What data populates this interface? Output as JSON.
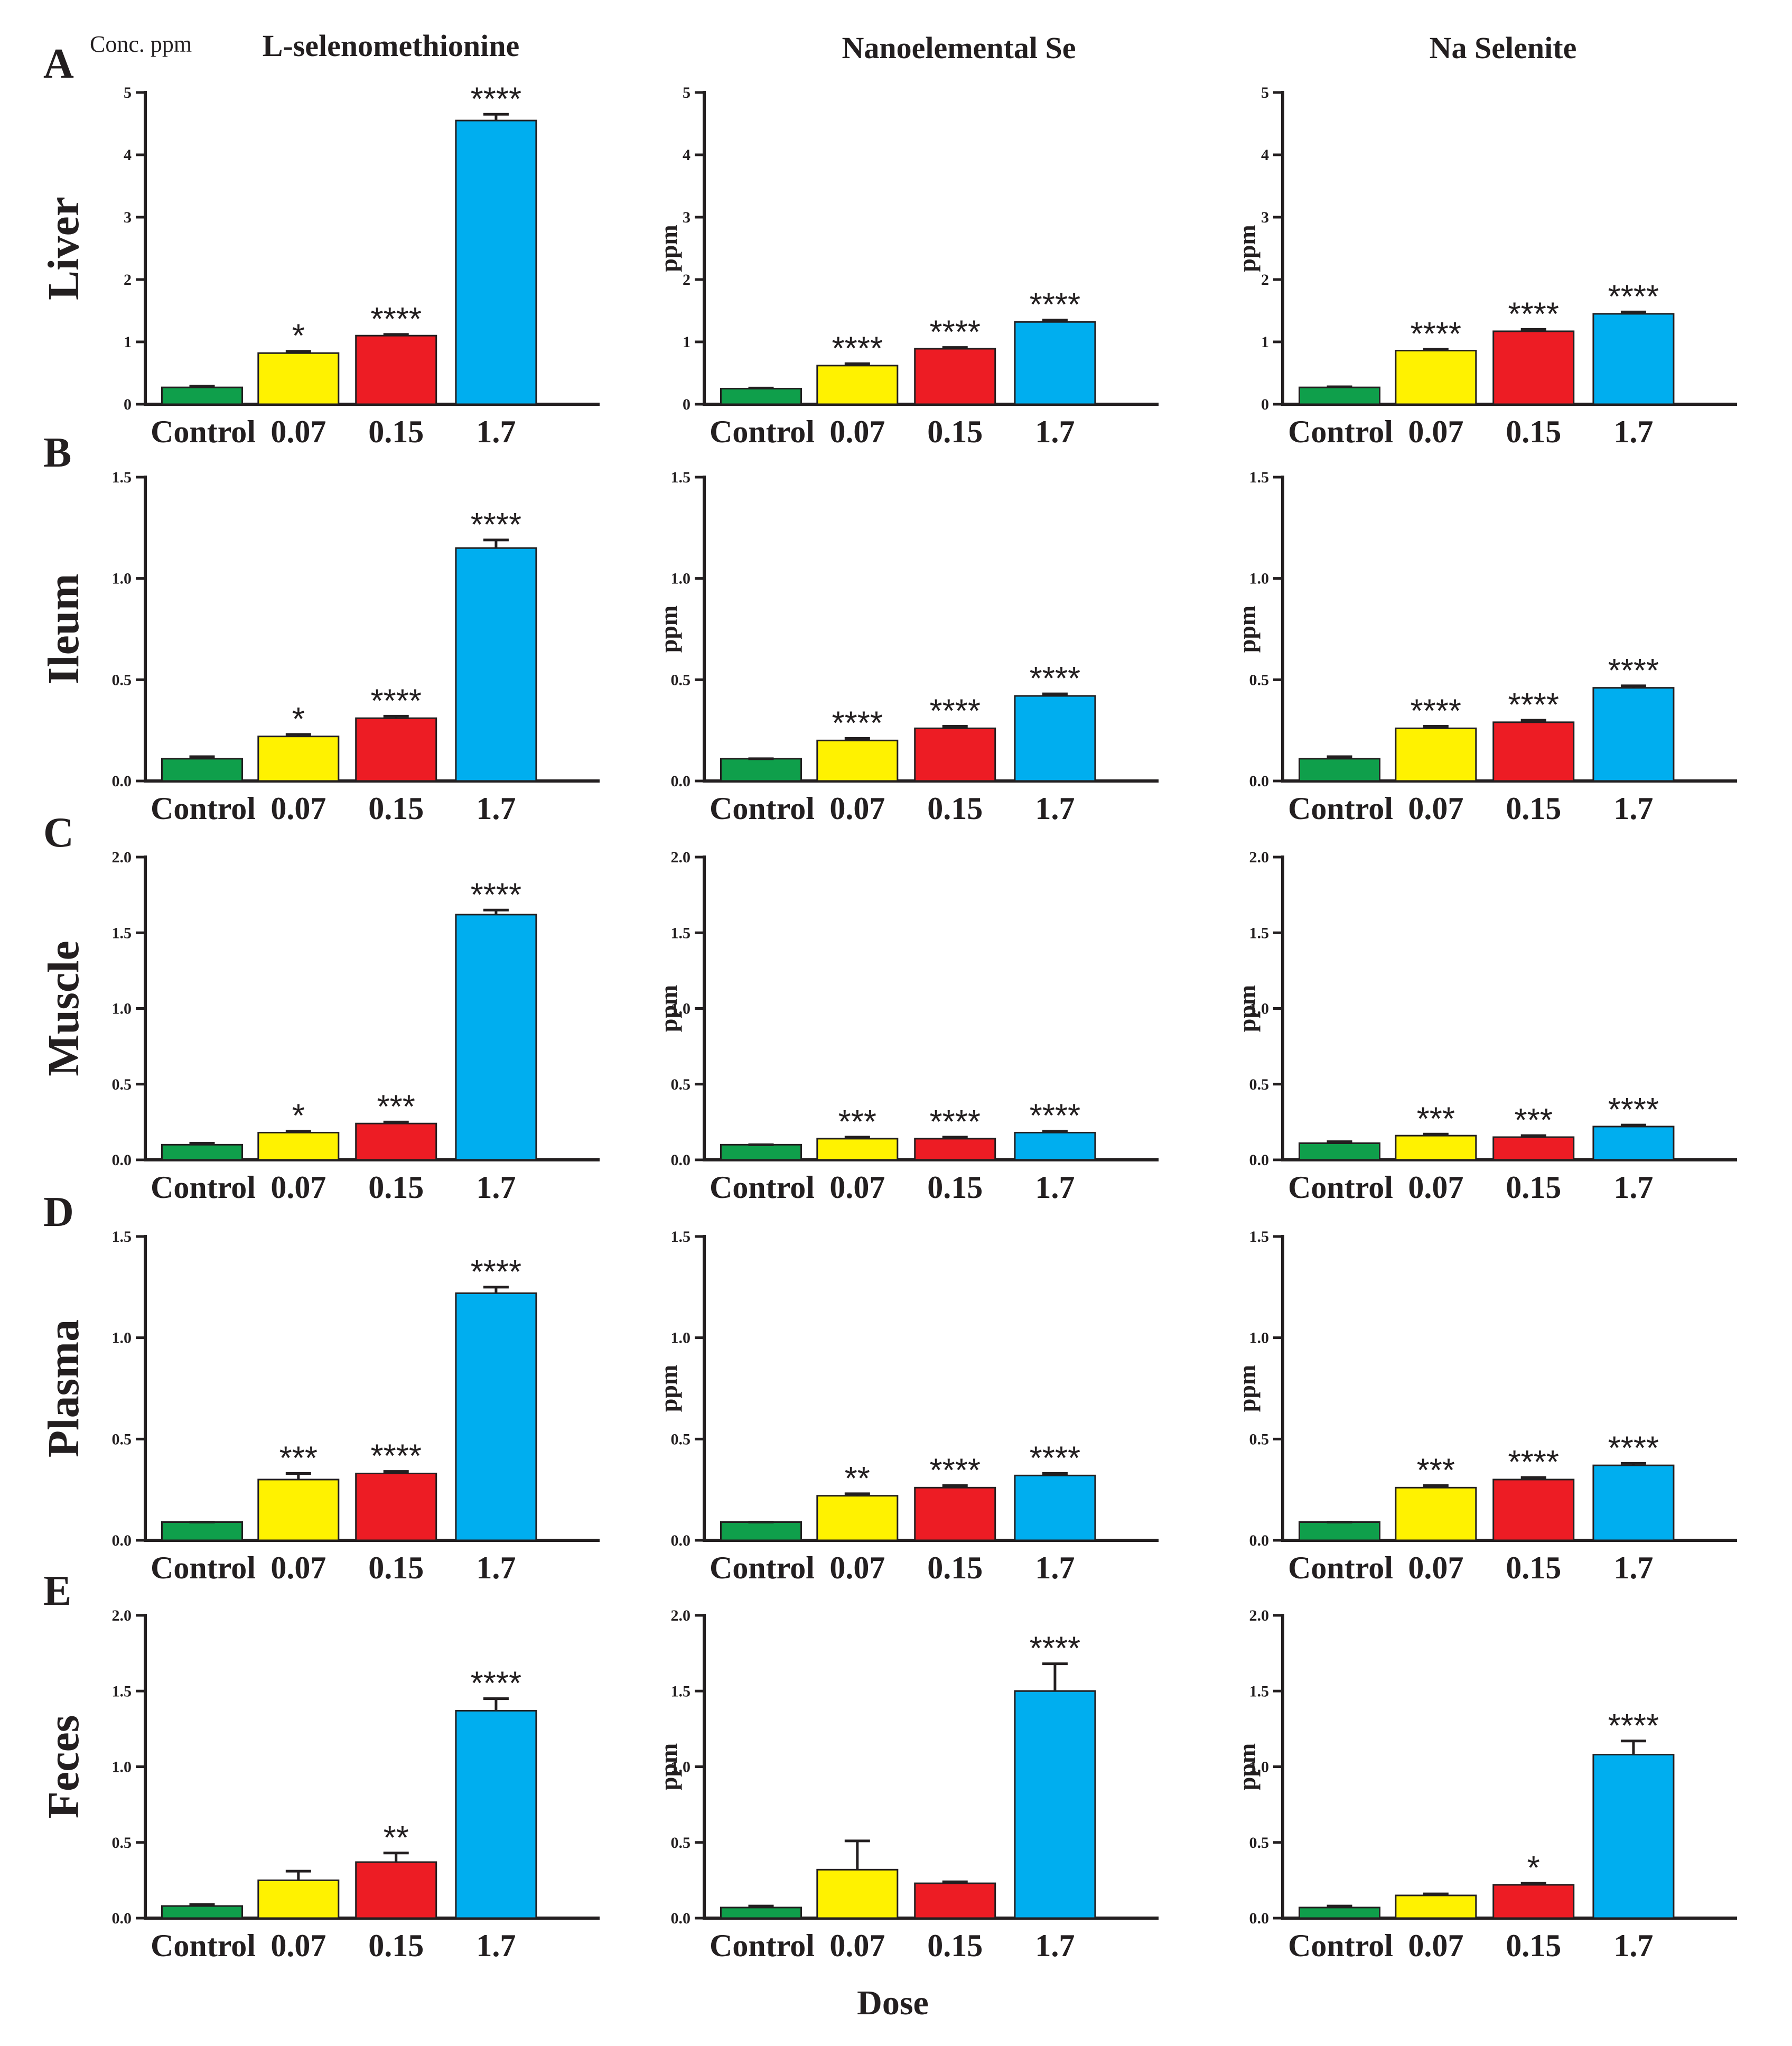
{
  "figure": {
    "col_titles": [
      "L-selenomethionine",
      "Nanoelemental Se",
      "Na Selenite"
    ],
    "conc_label": "Conc. ppm",
    "xlabel": "Dose",
    "ylabel": "ppm"
  },
  "colors": {
    "Control": "#0f9f4b",
    "0.07": "#fff200",
    "0.15": "#ed1c24",
    "1.7": "#00aeef",
    "axis": "#231f20"
  },
  "chart_data": [
    {
      "type": "bar",
      "row": "A",
      "tissue": "Liver",
      "compound": "L-selenomethionine",
      "categories": [
        "Control",
        "0.07",
        "0.15",
        "1.7"
      ],
      "values": [
        0.27,
        0.82,
        1.1,
        4.55
      ],
      "errors": [
        0.02,
        0.03,
        0.02,
        0.1
      ],
      "significance": [
        "",
        "*",
        "****",
        "****"
      ],
      "ylabel": "",
      "ylim": [
        0,
        5
      ],
      "yticks": [
        "0",
        "1",
        "2",
        "3",
        "4",
        "5"
      ]
    },
    {
      "type": "bar",
      "row": "A",
      "tissue": "Liver",
      "compound": "Nanoelemental Se",
      "categories": [
        "Control",
        "0.07",
        "0.15",
        "1.7"
      ],
      "values": [
        0.25,
        0.62,
        0.89,
        1.32
      ],
      "errors": [
        0.01,
        0.03,
        0.02,
        0.03
      ],
      "significance": [
        "",
        "****",
        "****",
        "****"
      ],
      "ylabel": "ppm",
      "ylim": [
        0,
        5
      ],
      "yticks": [
        "0",
        "1",
        "2",
        "3",
        "4",
        "5"
      ]
    },
    {
      "type": "bar",
      "row": "A",
      "tissue": "Liver",
      "compound": "Na Selenite",
      "categories": [
        "Control",
        "0.07",
        "0.15",
        "1.7"
      ],
      "values": [
        0.27,
        0.86,
        1.17,
        1.45
      ],
      "errors": [
        0.01,
        0.02,
        0.03,
        0.03
      ],
      "significance": [
        "",
        "****",
        "****",
        "****"
      ],
      "ylabel": "ppm",
      "ylim": [
        0,
        5
      ],
      "yticks": [
        "0",
        "1",
        "2",
        "3",
        "4",
        "5"
      ]
    },
    {
      "type": "bar",
      "row": "B",
      "tissue": "Ileum",
      "compound": "L-selenomethionine",
      "categories": [
        "Control",
        "0.07",
        "0.15",
        "1.7"
      ],
      "values": [
        0.11,
        0.22,
        0.31,
        1.15
      ],
      "errors": [
        0.01,
        0.01,
        0.01,
        0.04
      ],
      "significance": [
        "",
        "*",
        "****",
        "****"
      ],
      "ylabel": "",
      "ylim": [
        0,
        1.5
      ],
      "yticks": [
        "0.0",
        "0.5",
        "1.0",
        "1.5"
      ]
    },
    {
      "type": "bar",
      "row": "B",
      "tissue": "Ileum",
      "compound": "Nanoelemental Se",
      "categories": [
        "Control",
        "0.07",
        "0.15",
        "1.7"
      ],
      "values": [
        0.11,
        0.2,
        0.26,
        0.42
      ],
      "errors": [
        0.0,
        0.01,
        0.01,
        0.01
      ],
      "significance": [
        "",
        "****",
        "****",
        "****"
      ],
      "ylabel": "ppm",
      "ylim": [
        0,
        1.5
      ],
      "yticks": [
        "0.0",
        "0.5",
        "1.0",
        "1.5"
      ]
    },
    {
      "type": "bar",
      "row": "B",
      "tissue": "Ileum",
      "compound": "Na Selenite",
      "categories": [
        "Control",
        "0.07",
        "0.15",
        "1.7"
      ],
      "values": [
        0.11,
        0.26,
        0.29,
        0.46
      ],
      "errors": [
        0.01,
        0.01,
        0.01,
        0.01
      ],
      "significance": [
        "",
        "****",
        "****",
        "****"
      ],
      "ylabel": "ppm",
      "ylim": [
        0,
        1.5
      ],
      "yticks": [
        "0.0",
        "0.5",
        "1.0",
        "1.5"
      ]
    },
    {
      "type": "bar",
      "row": "C",
      "tissue": "Muscle",
      "compound": "L-selenomethionine",
      "categories": [
        "Control",
        "0.07",
        "0.15",
        "1.7"
      ],
      "values": [
        0.1,
        0.18,
        0.24,
        1.62
      ],
      "errors": [
        0.01,
        0.01,
        0.01,
        0.03
      ],
      "significance": [
        "",
        "*",
        "***",
        "****"
      ],
      "ylabel": "",
      "ylim": [
        0,
        2
      ],
      "yticks": [
        "0.0",
        "0.5",
        "1.0",
        "1.5",
        "2.0"
      ]
    },
    {
      "type": "bar",
      "row": "C",
      "tissue": "Muscle",
      "compound": "Nanoelemental Se",
      "categories": [
        "Control",
        "0.07",
        "0.15",
        "1.7"
      ],
      "values": [
        0.1,
        0.14,
        0.14,
        0.18
      ],
      "errors": [
        0.0,
        0.01,
        0.01,
        0.01
      ],
      "significance": [
        "",
        "***",
        "****",
        "****"
      ],
      "ylabel": "ppm",
      "ylim": [
        0,
        2
      ],
      "yticks": [
        "0.0",
        "0.5",
        "1.0",
        "1.5",
        "2.0"
      ]
    },
    {
      "type": "bar",
      "row": "C",
      "tissue": "Muscle",
      "compound": "Na Selenite",
      "categories": [
        "Control",
        "0.07",
        "0.15",
        "1.7"
      ],
      "values": [
        0.11,
        0.16,
        0.15,
        0.22
      ],
      "errors": [
        0.01,
        0.01,
        0.01,
        0.01
      ],
      "significance": [
        "",
        "***",
        "***",
        "****"
      ],
      "ylabel": "ppm",
      "ylim": [
        0,
        2
      ],
      "yticks": [
        "0.0",
        "0.5",
        "1.0",
        "1.5",
        "2.0"
      ]
    },
    {
      "type": "bar",
      "row": "D",
      "tissue": "Plasma",
      "compound": "L-selenomethionine",
      "categories": [
        "Control",
        "0.07",
        "0.15",
        "1.7"
      ],
      "values": [
        0.09,
        0.3,
        0.33,
        1.22
      ],
      "errors": [
        0.0,
        0.03,
        0.01,
        0.03
      ],
      "significance": [
        "",
        "***",
        "****",
        "****"
      ],
      "ylabel": "",
      "ylim": [
        0,
        1.5
      ],
      "yticks": [
        "0.0",
        "0.5",
        "1.0",
        "1.5"
      ]
    },
    {
      "type": "bar",
      "row": "D",
      "tissue": "Plasma",
      "compound": "Nanoelemental Se",
      "categories": [
        "Control",
        "0.07",
        "0.15",
        "1.7"
      ],
      "values": [
        0.09,
        0.22,
        0.26,
        0.32
      ],
      "errors": [
        0.0,
        0.01,
        0.01,
        0.01
      ],
      "significance": [
        "",
        "**",
        "****",
        "****"
      ],
      "ylabel": "ppm",
      "ylim": [
        0,
        1.5
      ],
      "yticks": [
        "0.0",
        "0.5",
        "1.0",
        "1.5"
      ]
    },
    {
      "type": "bar",
      "row": "D",
      "tissue": "Plasma",
      "compound": "Na Selenite",
      "categories": [
        "Control",
        "0.07",
        "0.15",
        "1.7"
      ],
      "values": [
        0.09,
        0.26,
        0.3,
        0.37
      ],
      "errors": [
        0.0,
        0.01,
        0.01,
        0.01
      ],
      "significance": [
        "",
        "***",
        "****",
        "****"
      ],
      "ylabel": "ppm",
      "ylim": [
        0,
        1.5
      ],
      "yticks": [
        "0.0",
        "0.5",
        "1.0",
        "1.5"
      ]
    },
    {
      "type": "bar",
      "row": "E",
      "tissue": "Feces",
      "compound": "L-selenomethionine",
      "categories": [
        "Control",
        "0.07",
        "0.15",
        "1.7"
      ],
      "values": [
        0.08,
        0.25,
        0.37,
        1.37
      ],
      "errors": [
        0.01,
        0.06,
        0.06,
        0.08
      ],
      "significance": [
        "",
        "",
        "**",
        "****"
      ],
      "ylabel": "",
      "ylim": [
        0,
        2
      ],
      "yticks": [
        "0.0",
        "0.5",
        "1.0",
        "1.5",
        "2.0"
      ]
    },
    {
      "type": "bar",
      "row": "E",
      "tissue": "Feces",
      "compound": "Nanoelemental Se",
      "categories": [
        "Control",
        "0.07",
        "0.15",
        "1.7"
      ],
      "values": [
        0.07,
        0.32,
        0.23,
        1.5
      ],
      "errors": [
        0.01,
        0.19,
        0.01,
        0.18
      ],
      "significance": [
        "",
        "",
        "",
        "****"
      ],
      "ylabel": "ppm",
      "ylim": [
        0,
        2
      ],
      "yticks": [
        "0.0",
        "0.5",
        "1.0",
        "1.5",
        "2.0"
      ]
    },
    {
      "type": "bar",
      "row": "E",
      "tissue": "Feces",
      "compound": "Na Selenite",
      "categories": [
        "Control",
        "0.07",
        "0.15",
        "1.7"
      ],
      "values": [
        0.07,
        0.15,
        0.22,
        1.08
      ],
      "errors": [
        0.01,
        0.01,
        0.01,
        0.09
      ],
      "significance": [
        "",
        "",
        "*",
        "****"
      ],
      "ylabel": "ppm",
      "ylim": [
        0,
        2
      ],
      "yticks": [
        "0.0",
        "0.5",
        "1.0",
        "1.5",
        "2.0"
      ]
    }
  ]
}
